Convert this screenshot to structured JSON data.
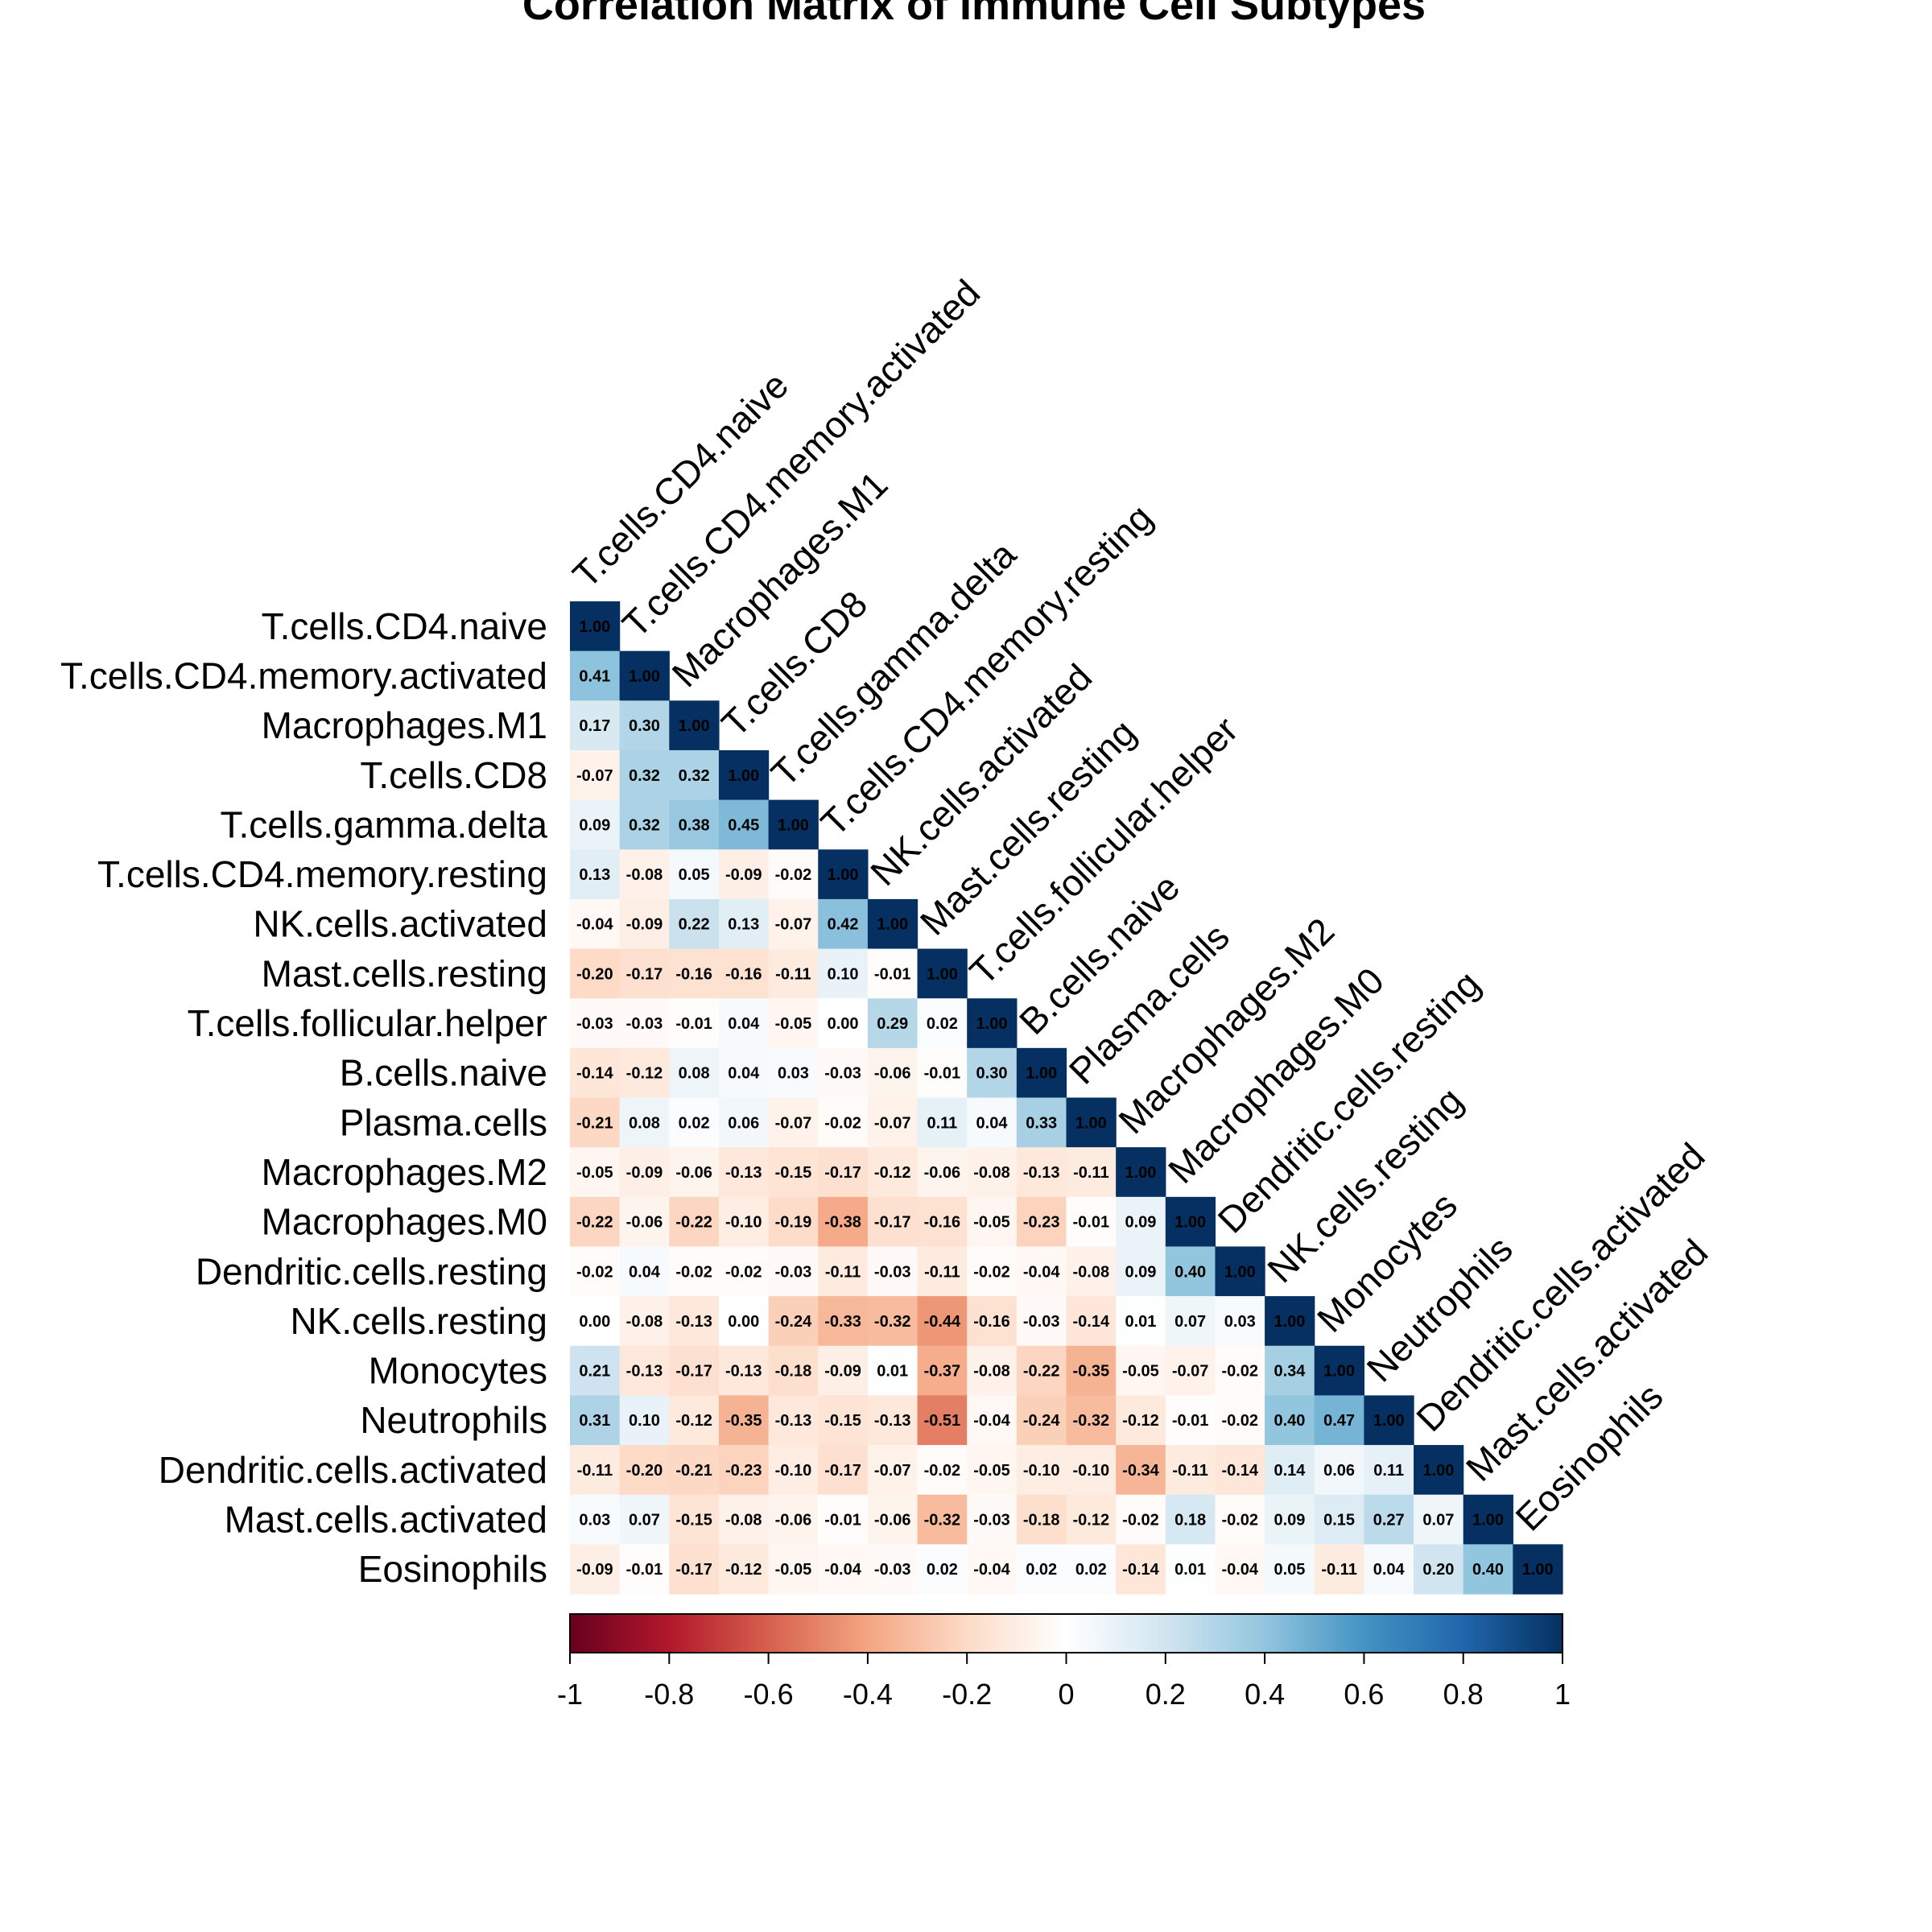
{
  "chart_data": {
    "type": "heatmap",
    "title": "Correlation Matrix of Immune Cell Subtypes",
    "layout": "lower-triangle",
    "labels": [
      "T.cells.CD4.naive",
      "T.cells.CD4.memory.activated",
      "Macrophages.M1",
      "T.cells.CD8",
      "T.cells.gamma.delta",
      "T.cells.CD4.memory.resting",
      "NK.cells.activated",
      "Mast.cells.resting",
      "T.cells.follicular.helper",
      "B.cells.naive",
      "Plasma.cells",
      "Macrophages.M2",
      "Macrophages.M0",
      "Dendritic.cells.resting",
      "NK.cells.resting",
      "Monocytes",
      "Neutrophils",
      "Dendritic.cells.activated",
      "Mast.cells.activated",
      "Eosinophils"
    ],
    "matrix": [
      [
        1.0
      ],
      [
        0.41,
        1.0
      ],
      [
        0.17,
        0.3,
        1.0
      ],
      [
        -0.07,
        0.32,
        0.32,
        1.0
      ],
      [
        0.09,
        0.32,
        0.38,
        0.45,
        1.0
      ],
      [
        0.13,
        -0.08,
        0.05,
        -0.09,
        -0.02,
        1.0
      ],
      [
        -0.04,
        -0.09,
        0.22,
        0.13,
        -0.07,
        0.42,
        1.0
      ],
      [
        -0.2,
        -0.17,
        -0.16,
        -0.16,
        -0.11,
        0.1,
        -0.01,
        1.0
      ],
      [
        -0.03,
        -0.03,
        -0.01,
        0.04,
        -0.05,
        0.0,
        0.29,
        0.02,
        1.0
      ],
      [
        -0.14,
        -0.12,
        0.08,
        0.04,
        0.03,
        -0.03,
        -0.06,
        -0.01,
        0.3,
        1.0
      ],
      [
        -0.21,
        0.08,
        0.02,
        0.06,
        -0.07,
        -0.02,
        -0.07,
        0.11,
        0.04,
        0.33,
        1.0
      ],
      [
        -0.05,
        -0.09,
        -0.06,
        -0.13,
        -0.15,
        -0.17,
        -0.12,
        -0.06,
        -0.08,
        -0.13,
        -0.11,
        1.0
      ],
      [
        -0.22,
        -0.06,
        -0.22,
        -0.1,
        -0.19,
        -0.38,
        -0.17,
        -0.16,
        -0.05,
        -0.23,
        -0.01,
        0.09,
        1.0
      ],
      [
        -0.02,
        0.04,
        -0.02,
        -0.02,
        -0.03,
        -0.11,
        -0.03,
        -0.11,
        -0.02,
        -0.04,
        -0.08,
        0.09,
        0.4,
        1.0
      ],
      [
        0.0,
        -0.08,
        -0.13,
        0.0,
        -0.24,
        -0.33,
        -0.32,
        -0.44,
        -0.16,
        -0.03,
        -0.14,
        0.01,
        0.07,
        0.03,
        1.0
      ],
      [
        0.21,
        -0.13,
        -0.17,
        -0.13,
        -0.18,
        -0.09,
        0.01,
        -0.37,
        -0.08,
        -0.22,
        -0.35,
        -0.05,
        -0.07,
        -0.02,
        0.34,
        1.0
      ],
      [
        0.31,
        0.1,
        -0.12,
        -0.35,
        -0.13,
        -0.15,
        -0.13,
        -0.51,
        -0.04,
        -0.24,
        -0.32,
        -0.12,
        -0.01,
        -0.02,
        0.4,
        0.47,
        1.0
      ],
      [
        -0.11,
        -0.2,
        -0.21,
        -0.23,
        -0.1,
        -0.17,
        -0.07,
        -0.02,
        -0.05,
        -0.1,
        -0.1,
        -0.34,
        -0.11,
        -0.14,
        0.14,
        0.06,
        0.11,
        1.0
      ],
      [
        0.03,
        0.07,
        -0.15,
        -0.08,
        -0.06,
        -0.01,
        -0.06,
        -0.32,
        -0.03,
        -0.18,
        -0.12,
        -0.02,
        0.18,
        -0.02,
        0.09,
        0.15,
        0.27,
        0.07,
        1.0
      ],
      [
        -0.09,
        -0.01,
        -0.17,
        -0.12,
        -0.05,
        -0.04,
        -0.03,
        0.02,
        -0.04,
        0.02,
        0.02,
        -0.14,
        0.01,
        -0.04,
        0.05,
        -0.11,
        0.04,
        0.2,
        0.4,
        1.0
      ]
    ],
    "colorbar": {
      "range": [
        -1,
        1
      ],
      "ticks": [
        "-1",
        "-0.8",
        "-0.6",
        "-0.4",
        "-0.2",
        "0",
        "0.2",
        "0.4",
        "0.6",
        "0.8",
        "1"
      ],
      "colors": [
        "#67001F",
        "#B2182B",
        "#D6604D",
        "#F4A582",
        "#FDDBC7",
        "#FFFFFF",
        "#D1E5F0",
        "#92C5DE",
        "#4393C3",
        "#2166AC",
        "#053061"
      ]
    }
  }
}
